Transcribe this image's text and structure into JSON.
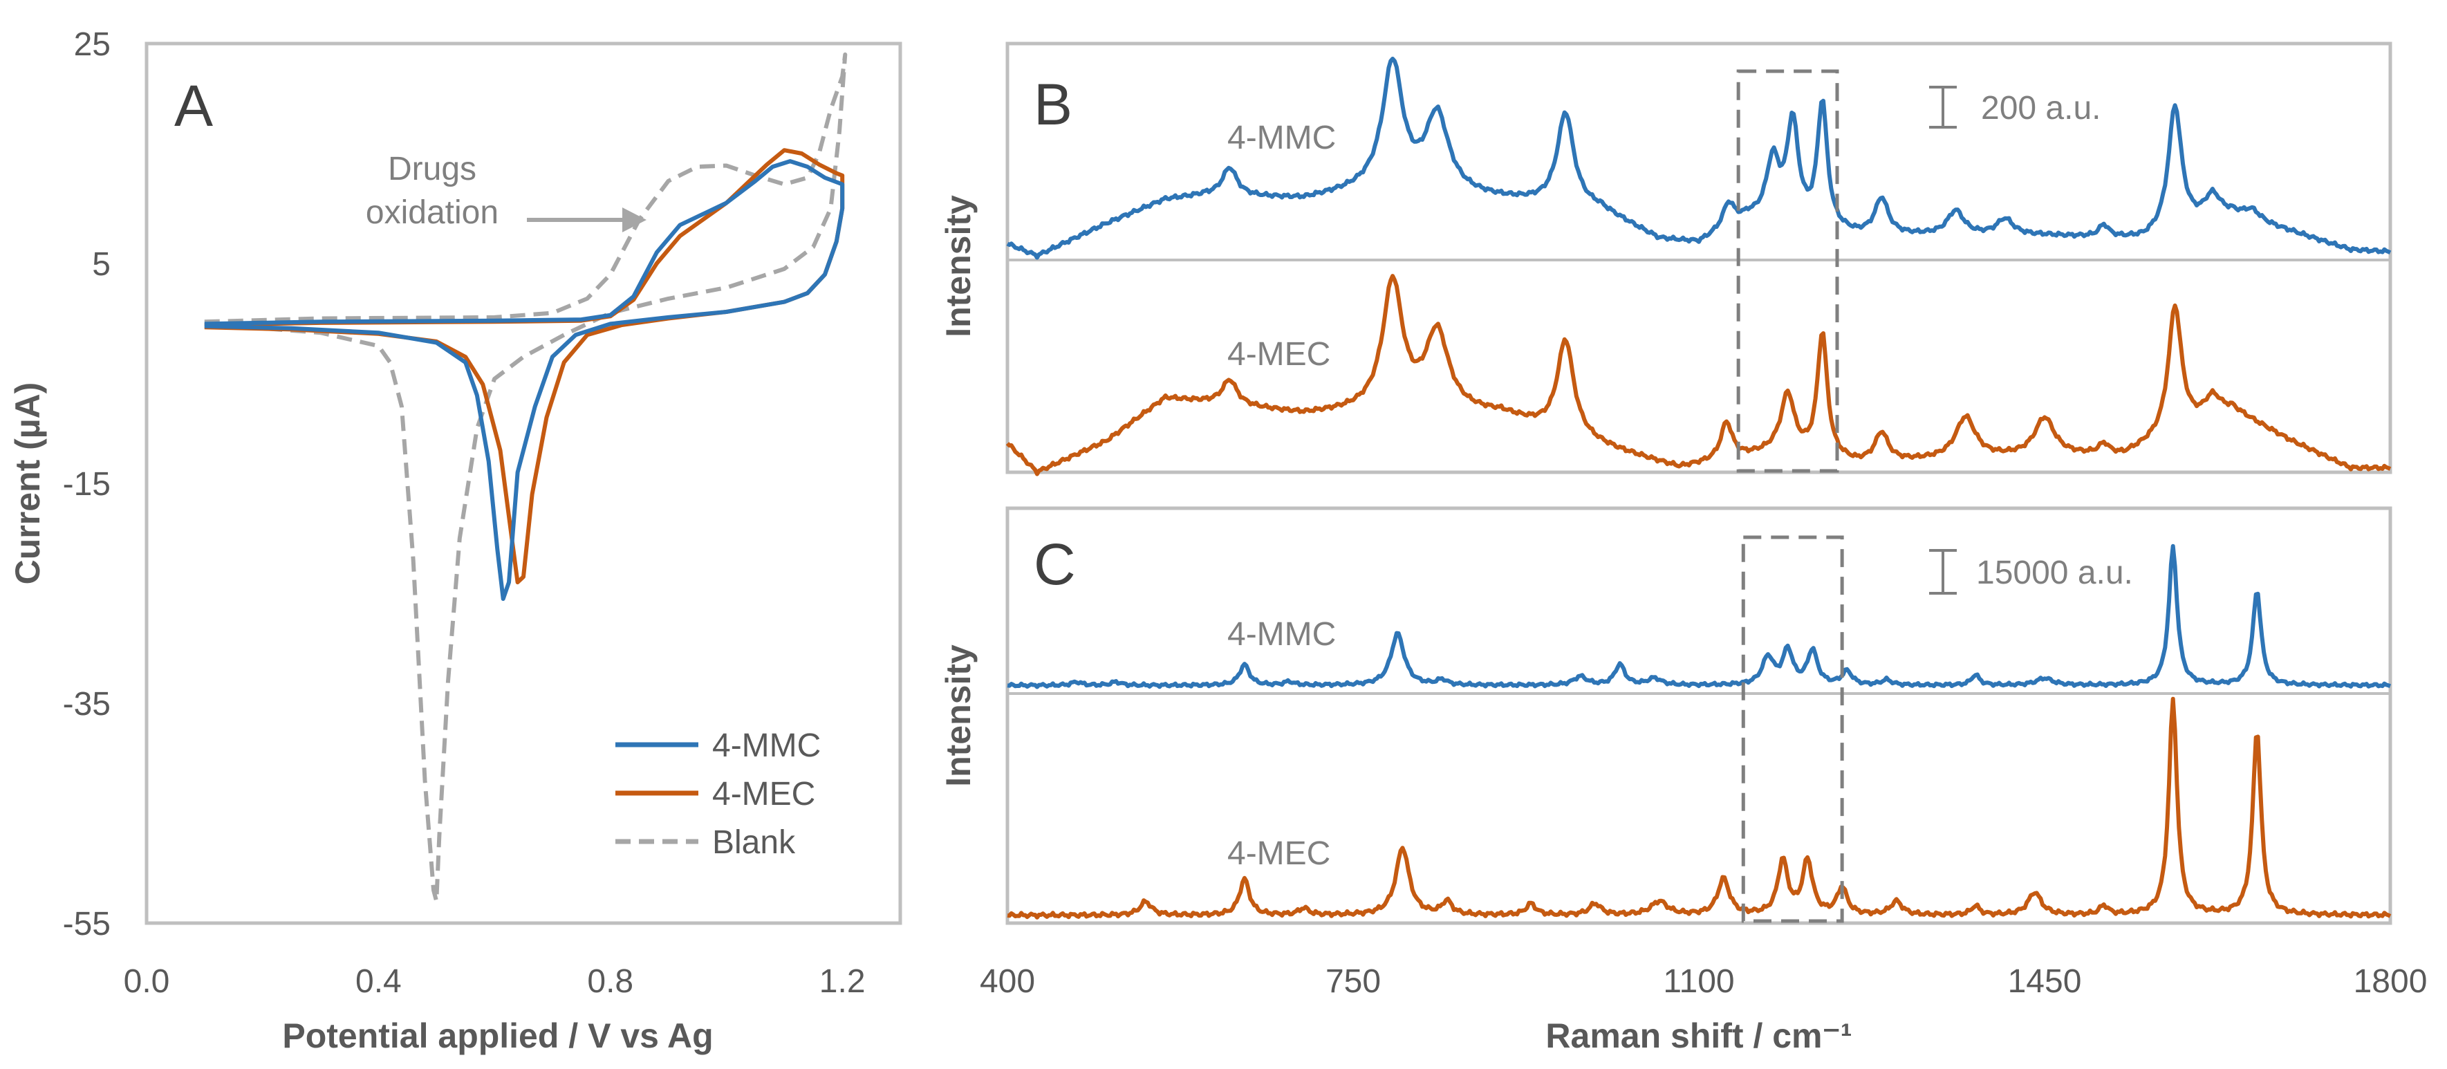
{
  "colors": {
    "mmc": "#2e75b6",
    "mec": "#c55a11",
    "blank": "#a6a6a6",
    "frame": "#bfbfbf",
    "text": "#595959",
    "dashed_box": "#7f7f7f"
  },
  "chart_data": [
    {
      "panel": "A",
      "type": "line",
      "xlabel": "Potential applied / V vs Ag",
      "ylabel": "Current (µA)",
      "xlim": [
        0,
        1.3
      ],
      "ylim": [
        -55,
        25
      ],
      "x_ticks": [
        "0.0",
        "0.4",
        "0.8",
        "1.2"
      ],
      "x_tick_values": [
        0,
        0.4,
        0.8,
        1.2
      ],
      "y_ticks": [
        "25",
        "5",
        "-15",
        "-35",
        "-55"
      ],
      "y_tick_values": [
        25,
        5,
        -15,
        -35,
        -55
      ],
      "annotation": [
        "Drugs",
        "oxidation"
      ],
      "legend": [
        "4-MMC",
        "4-MEC",
        "Blank"
      ],
      "legend_position": "bottom-right",
      "series": [
        {
          "name": "4-MMC",
          "style": "solid",
          "points": [
            [
              0.1,
              -0.5
            ],
            [
              0.3,
              -0.3
            ],
            [
              0.6,
              -0.2
            ],
            [
              0.75,
              -0.1
            ],
            [
              0.8,
              0.3
            ],
            [
              0.84,
              2
            ],
            [
              0.88,
              6
            ],
            [
              0.92,
              8.5
            ],
            [
              0.96,
              9.5
            ],
            [
              1.0,
              10.5
            ],
            [
              1.05,
              12.5
            ],
            [
              1.08,
              13.8
            ],
            [
              1.11,
              14.3
            ],
            [
              1.14,
              13.8
            ],
            [
              1.17,
              12.8
            ],
            [
              1.2,
              12.2
            ],
            [
              1.2,
              10
            ],
            [
              1.19,
              7
            ],
            [
              1.17,
              4
            ],
            [
              1.14,
              2.3
            ],
            [
              1.1,
              1.5
            ],
            [
              1.0,
              0.6
            ],
            [
              0.9,
              0.1
            ],
            [
              0.8,
              -0.5
            ],
            [
              0.74,
              -1.5
            ],
            [
              0.7,
              -3.5
            ],
            [
              0.67,
              -8
            ],
            [
              0.64,
              -14
            ],
            [
              0.625,
              -24
            ],
            [
              0.615,
              -25.5
            ],
            [
              0.605,
              -21
            ],
            [
              0.59,
              -13
            ],
            [
              0.57,
              -7
            ],
            [
              0.55,
              -4
            ],
            [
              0.5,
              -2.2
            ],
            [
              0.4,
              -1.3
            ],
            [
              0.25,
              -0.9
            ],
            [
              0.1,
              -0.7
            ]
          ]
        },
        {
          "name": "4-MEC",
          "style": "solid",
          "points": [
            [
              0.1,
              -0.6
            ],
            [
              0.3,
              -0.4
            ],
            [
              0.6,
              -0.3
            ],
            [
              0.75,
              -0.2
            ],
            [
              0.8,
              0.2
            ],
            [
              0.84,
              1.7
            ],
            [
              0.88,
              5
            ],
            [
              0.92,
              7.5
            ],
            [
              0.96,
              9
            ],
            [
              1.0,
              10.5
            ],
            [
              1.04,
              12.5
            ],
            [
              1.07,
              14
            ],
            [
              1.1,
              15.3
            ],
            [
              1.13,
              15
            ],
            [
              1.16,
              14
            ],
            [
              1.19,
              13.2
            ],
            [
              1.2,
              13
            ],
            [
              1.2,
              10
            ],
            [
              1.19,
              7
            ],
            [
              1.17,
              4
            ],
            [
              1.14,
              2.3
            ],
            [
              1.1,
              1.5
            ],
            [
              1.0,
              0.6
            ],
            [
              0.9,
              0
            ],
            [
              0.82,
              -0.6
            ],
            [
              0.76,
              -1.5
            ],
            [
              0.72,
              -4
            ],
            [
              0.69,
              -9
            ],
            [
              0.665,
              -16
            ],
            [
              0.65,
              -23.5
            ],
            [
              0.64,
              -24
            ],
            [
              0.63,
              -20
            ],
            [
              0.61,
              -12
            ],
            [
              0.58,
              -6
            ],
            [
              0.55,
              -3.5
            ],
            [
              0.5,
              -2.1
            ],
            [
              0.4,
              -1.4
            ],
            [
              0.25,
              -1
            ],
            [
              0.1,
              -0.8
            ]
          ]
        },
        {
          "name": "Blank",
          "style": "dashed",
          "points": [
            [
              0.1,
              -0.3
            ],
            [
              0.3,
              0
            ],
            [
              0.6,
              0.1
            ],
            [
              0.7,
              0.5
            ],
            [
              0.76,
              1.8
            ],
            [
              0.8,
              4
            ],
            [
              0.85,
              9
            ],
            [
              0.9,
              12.5
            ],
            [
              0.95,
              13.8
            ],
            [
              1.0,
              13.9
            ],
            [
              1.05,
              13
            ],
            [
              1.1,
              12.2
            ],
            [
              1.14,
              12.8
            ],
            [
              1.16,
              15
            ],
            [
              1.18,
              19
            ],
            [
              1.2,
              22
            ],
            [
              1.205,
              24
            ],
            [
              1.195,
              17
            ],
            [
              1.18,
              10
            ],
            [
              1.15,
              6.5
            ],
            [
              1.1,
              4.5
            ],
            [
              1.0,
              2.8
            ],
            [
              0.9,
              1.8
            ],
            [
              0.8,
              0.5
            ],
            [
              0.72,
              -1.5
            ],
            [
              0.65,
              -3.5
            ],
            [
              0.6,
              -5.5
            ],
            [
              0.57,
              -10
            ],
            [
              0.54,
              -20
            ],
            [
              0.52,
              -33
            ],
            [
              0.505,
              -47
            ],
            [
              0.5,
              -53
            ],
            [
              0.495,
              -52
            ],
            [
              0.48,
              -42
            ],
            [
              0.46,
              -22
            ],
            [
              0.44,
              -8
            ],
            [
              0.42,
              -4
            ],
            [
              0.4,
              -2.5
            ],
            [
              0.3,
              -1.3
            ],
            [
              0.1,
              -0.5
            ]
          ]
        }
      ]
    },
    {
      "panel": "B",
      "type": "line",
      "xlabel": "",
      "ylabel": "Intensity",
      "xlim": [
        400,
        1800
      ],
      "scale_bar": "200 a.u.",
      "highlight_range": [
        1140,
        1240
      ],
      "series": [
        {
          "name": "4-MMC",
          "baseline_points": [
            [
              400,
              0.08
            ],
            [
              430,
              0.02
            ],
            [
              500,
              0.18
            ],
            [
              560,
              0.3
            ],
            [
              600,
              0.32
            ],
            [
              700,
              0.3
            ],
            [
              780,
              0.36
            ],
            [
              900,
              0.3
            ],
            [
              1000,
              0.25
            ],
            [
              1060,
              0.1
            ],
            [
              1100,
              0.08
            ],
            [
              1150,
              0.2
            ],
            [
              1260,
              0.12
            ],
            [
              1350,
              0.12
            ],
            [
              1450,
              0.12
            ],
            [
              1550,
              0.1
            ],
            [
              1640,
              0.22
            ],
            [
              1700,
              0.14
            ],
            [
              1760,
              0.05
            ],
            [
              1800,
              0.04
            ]
          ],
          "peaks": [
            [
              625,
              0.14,
              9
            ],
            [
              790,
              0.62,
              12
            ],
            [
              835,
              0.38,
              14
            ],
            [
              965,
              0.46,
              10
            ],
            [
              1130,
              0.12,
              7
            ],
            [
              1175,
              0.3,
              8
            ],
            [
              1195,
              0.5,
              7
            ],
            [
              1225,
              0.62,
              6
            ],
            [
              1285,
              0.18,
              8
            ],
            [
              1360,
              0.12,
              10
            ],
            [
              1410,
              0.08,
              10
            ],
            [
              1510,
              0.06,
              6
            ],
            [
              1582,
              0.62,
              8
            ],
            [
              1620,
              0.12,
              10
            ],
            [
              1660,
              0.05,
              10
            ]
          ]
        },
        {
          "name": "4-MEC",
          "baseline_points": [
            [
              400,
              0.14
            ],
            [
              430,
              0.0
            ],
            [
              500,
              0.15
            ],
            [
              560,
              0.36
            ],
            [
              600,
              0.34
            ],
            [
              700,
              0.28
            ],
            [
              780,
              0.3
            ],
            [
              900,
              0.28
            ],
            [
              950,
              0.2
            ],
            [
              1020,
              0.1
            ],
            [
              1080,
              0.02
            ],
            [
              1120,
              0.05
            ],
            [
              1180,
              0.1
            ],
            [
              1260,
              0.04
            ],
            [
              1350,
              0.06
            ],
            [
              1450,
              0.08
            ],
            [
              1530,
              0.08
            ],
            [
              1640,
              0.3
            ],
            [
              1700,
              0.15
            ],
            [
              1760,
              0.02
            ],
            [
              1800,
              0.02
            ]
          ],
          "peaks": [
            [
              625,
              0.12,
              9
            ],
            [
              790,
              0.62,
              12
            ],
            [
              835,
              0.38,
              14
            ],
            [
              965,
              0.46,
              10
            ],
            [
              1128,
              0.18,
              7
            ],
            [
              1190,
              0.28,
              8
            ],
            [
              1225,
              0.6,
              6
            ],
            [
              1285,
              0.14,
              8
            ],
            [
              1370,
              0.2,
              12
            ],
            [
              1450,
              0.18,
              12
            ],
            [
              1510,
              0.05,
              6
            ],
            [
              1582,
              0.62,
              8
            ],
            [
              1620,
              0.1,
              10
            ]
          ]
        }
      ],
      "labels": [
        "4-MMC",
        "4-MEC"
      ]
    },
    {
      "panel": "C",
      "type": "line",
      "xlabel": "Raman shift / cm⁻¹",
      "ylabel": "Intensity",
      "xlim": [
        400,
        1800
      ],
      "x_ticks": [
        "400",
        "750",
        "1100",
        "1450",
        "1800"
      ],
      "x_tick_values": [
        400,
        750,
        1100,
        1450,
        1800
      ],
      "scale_bar": "15000 a.u.",
      "highlight_range": [
        1145,
        1245
      ],
      "series": [
        {
          "name": "4-MMC",
          "baseline_points": [
            [
              400,
              0.015
            ],
            [
              1800,
              0.015
            ]
          ],
          "peaks": [
            [
              470,
              0.02,
              6
            ],
            [
              510,
              0.02,
              6
            ],
            [
              640,
              0.12,
              6
            ],
            [
              685,
              0.02,
              6
            ],
            [
              795,
              0.3,
              8
            ],
            [
              840,
              0.03,
              6
            ],
            [
              980,
              0.05,
              8
            ],
            [
              1020,
              0.12,
              6
            ],
            [
              1055,
              0.04,
              8
            ],
            [
              1170,
              0.16,
              7
            ],
            [
              1190,
              0.2,
              6
            ],
            [
              1215,
              0.2,
              6
            ],
            [
              1250,
              0.08,
              6
            ],
            [
              1290,
              0.03,
              6
            ],
            [
              1380,
              0.06,
              5
            ],
            [
              1450,
              0.04,
              10
            ],
            [
              1580,
              0.8,
              5
            ],
            [
              1665,
              0.55,
              5
            ]
          ]
        },
        {
          "name": "4-MEC",
          "baseline_points": [
            [
              400,
              0.01
            ],
            [
              1800,
              0.01
            ]
          ],
          "peaks": [
            [
              540,
              0.06,
              7
            ],
            [
              640,
              0.16,
              6
            ],
            [
              700,
              0.03,
              6
            ],
            [
              800,
              0.3,
              8
            ],
            [
              845,
              0.06,
              6
            ],
            [
              930,
              0.05,
              6
            ],
            [
              995,
              0.05,
              7
            ],
            [
              1060,
              0.06,
              10
            ],
            [
              1125,
              0.16,
              7
            ],
            [
              1185,
              0.24,
              6
            ],
            [
              1210,
              0.24,
              6
            ],
            [
              1245,
              0.12,
              6
            ],
            [
              1300,
              0.06,
              7
            ],
            [
              1380,
              0.04,
              5
            ],
            [
              1440,
              0.1,
              8
            ],
            [
              1510,
              0.04,
              5
            ],
            [
              1580,
              0.95,
              5
            ],
            [
              1665,
              0.82,
              5
            ]
          ]
        }
      ],
      "labels": [
        "4-MMC",
        "4-MEC"
      ]
    }
  ]
}
